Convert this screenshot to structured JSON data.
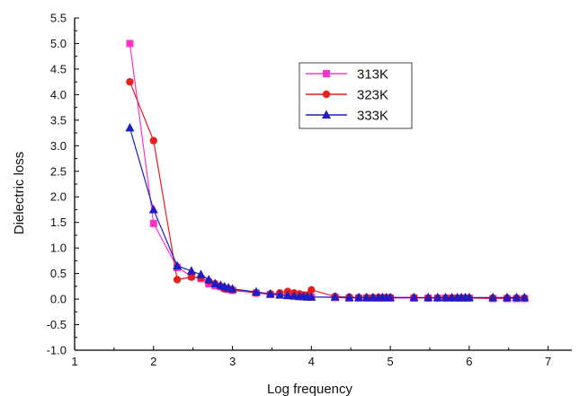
{
  "chart_data": {
    "type": "line",
    "xlabel": "Log frequency",
    "ylabel": "Dielectric loss",
    "xlim": [
      1,
      7.3
    ],
    "ylim": [
      -1.0,
      5.5
    ],
    "xticks": [
      1,
      2,
      3,
      4,
      5,
      6,
      7
    ],
    "yticks": [
      -1.0,
      -0.5,
      0.0,
      0.5,
      1.0,
      1.5,
      2.0,
      2.5,
      3.0,
      3.5,
      4.0,
      4.5,
      5.0,
      5.5
    ],
    "grid": false,
    "legend_position": "top-center",
    "series": [
      {
        "name": "313K",
        "color": "#ff33cc",
        "marker": "square",
        "x": [
          1.7,
          2.0,
          2.3,
          2.48,
          2.6,
          2.7,
          2.78,
          2.85,
          2.9,
          2.95,
          3.0,
          3.3,
          3.48,
          3.6,
          3.7,
          3.78,
          3.85,
          3.9,
          3.95,
          4.0,
          4.3,
          4.48,
          4.6,
          4.7,
          4.78,
          4.85,
          4.9,
          4.95,
          5.0,
          5.3,
          5.48,
          5.6,
          5.7,
          5.78,
          5.85,
          5.9,
          5.95,
          6.0,
          6.3,
          6.48,
          6.6,
          6.7
        ],
        "y": [
          5.0,
          1.48,
          0.62,
          0.45,
          0.4,
          0.3,
          0.26,
          0.24,
          0.21,
          0.19,
          0.17,
          0.12,
          0.09,
          0.08,
          0.07,
          0.06,
          0.05,
          0.05,
          0.04,
          0.04,
          0.03,
          0.02,
          0.02,
          0.02,
          0.02,
          0.02,
          0.02,
          0.02,
          0.02,
          0.02,
          0.02,
          0.02,
          0.02,
          0.02,
          0.02,
          0.02,
          0.02,
          0.02,
          0.01,
          0.01,
          0.01,
          0.01
        ]
      },
      {
        "name": "323K",
        "color": "#e8201c",
        "marker": "circle",
        "x": [
          1.7,
          2.0,
          2.3,
          2.48,
          2.6,
          2.7,
          2.78,
          2.85,
          2.9,
          2.95,
          3.0,
          3.3,
          3.48,
          3.6,
          3.7,
          3.78,
          3.85,
          3.9,
          3.95,
          4.0,
          4.3,
          4.48,
          4.6,
          4.7,
          4.78,
          4.85,
          4.9,
          4.95,
          5.0,
          5.3,
          5.48,
          5.6,
          5.7,
          5.78,
          5.85,
          5.9,
          5.95,
          6.0,
          6.3,
          6.48,
          6.6,
          6.7
        ],
        "y": [
          4.25,
          3.1,
          0.38,
          0.43,
          0.42,
          0.35,
          0.3,
          0.25,
          0.2,
          0.2,
          0.18,
          0.12,
          0.1,
          0.12,
          0.15,
          0.12,
          0.1,
          0.08,
          0.08,
          0.18,
          0.05,
          0.04,
          0.03,
          0.03,
          0.03,
          0.03,
          0.03,
          0.03,
          0.03,
          0.03,
          0.02,
          0.02,
          0.02,
          0.02,
          0.02,
          0.02,
          0.02,
          0.02,
          0.02,
          0.02,
          0.02,
          0.02
        ]
      },
      {
        "name": "333K",
        "color": "#1d1dc8",
        "marker": "triangle",
        "x": [
          1.7,
          2.0,
          2.3,
          2.48,
          2.6,
          2.7,
          2.78,
          2.85,
          2.9,
          2.95,
          3.0,
          3.3,
          3.48,
          3.6,
          3.7,
          3.78,
          3.85,
          3.9,
          3.95,
          4.0,
          4.3,
          4.48,
          4.6,
          4.7,
          4.78,
          4.85,
          4.9,
          4.95,
          5.0,
          5.3,
          5.48,
          5.6,
          5.7,
          5.78,
          5.85,
          5.9,
          5.95,
          6.0,
          6.3,
          6.48,
          6.6,
          6.7
        ],
        "y": [
          3.35,
          1.75,
          0.65,
          0.55,
          0.48,
          0.38,
          0.3,
          0.27,
          0.24,
          0.22,
          0.2,
          0.14,
          0.1,
          0.08,
          0.07,
          0.06,
          0.05,
          0.05,
          0.04,
          0.04,
          0.04,
          0.03,
          0.03,
          0.03,
          0.03,
          0.03,
          0.03,
          0.03,
          0.03,
          0.03,
          0.03,
          0.03,
          0.03,
          0.03,
          0.03,
          0.03,
          0.03,
          0.03,
          0.03,
          0.03,
          0.03,
          0.03
        ]
      }
    ]
  }
}
